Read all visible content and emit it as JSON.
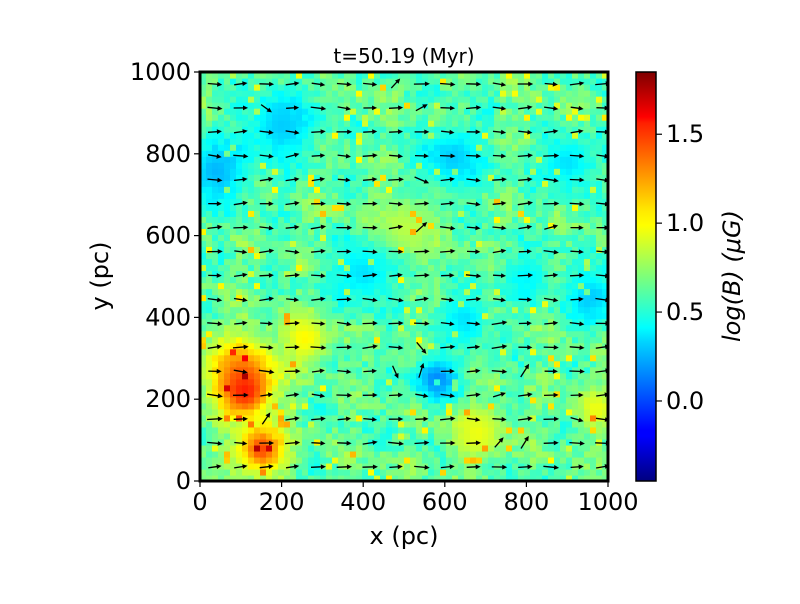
{
  "chart_data": {
    "type": "heatmap",
    "title": "t=50.19 (Myr)",
    "xlabel": "x (pc)",
    "ylabel": "y (pc)",
    "xlim": [
      0,
      1000
    ],
    "ylim": [
      0,
      1000
    ],
    "xticks": [
      "0",
      "200",
      "400",
      "600",
      "800",
      "1000"
    ],
    "yticks": [
      "0",
      "200",
      "400",
      "600",
      "800",
      "1000"
    ],
    "colorbar": {
      "label": "log(B) (μG)",
      "colormap": "jet",
      "range": [
        -0.45,
        1.85
      ],
      "ticks": [
        "0.0",
        "0.5",
        "1.0",
        "1.5"
      ],
      "tick_values": [
        0.0,
        0.5,
        1.0,
        1.5
      ]
    },
    "field_features": [
      {
        "x": 100,
        "y": 270,
        "r": 90,
        "value": 1.25
      },
      {
        "x": 150,
        "y": 80,
        "r": 60,
        "value": 1.4
      },
      {
        "x": 110,
        "y": 220,
        "r": 55,
        "value": 1.5
      },
      {
        "x": 260,
        "y": 350,
        "r": 60,
        "value": 1.0
      },
      {
        "x": 680,
        "y": 120,
        "r": 70,
        "value": 0.95
      },
      {
        "x": 970,
        "y": 180,
        "r": 50,
        "value": 0.95
      },
      {
        "x": 500,
        "y": 620,
        "r": 80,
        "value": 0.85
      },
      {
        "x": 40,
        "y": 760,
        "r": 80,
        "value": 0.25
      },
      {
        "x": 200,
        "y": 870,
        "r": 90,
        "value": 0.3
      },
      {
        "x": 620,
        "y": 790,
        "r": 80,
        "value": 0.3
      },
      {
        "x": 580,
        "y": 250,
        "r": 55,
        "value": 0.15
      },
      {
        "x": 960,
        "y": 450,
        "r": 70,
        "value": 0.3
      },
      {
        "x": 400,
        "y": 510,
        "r": 80,
        "value": 0.35
      },
      {
        "x": 800,
        "y": 500,
        "r": 60,
        "value": 0.4
      },
      {
        "x": 900,
        "y": 780,
        "r": 70,
        "value": 0.35
      },
      {
        "x": 650,
        "y": 400,
        "r": 60,
        "value": 0.35
      }
    ],
    "vector_field": {
      "grid_x": 16,
      "grid_y": 17,
      "dominant_direction": "+x",
      "color": "#000000"
    },
    "grid": false
  }
}
